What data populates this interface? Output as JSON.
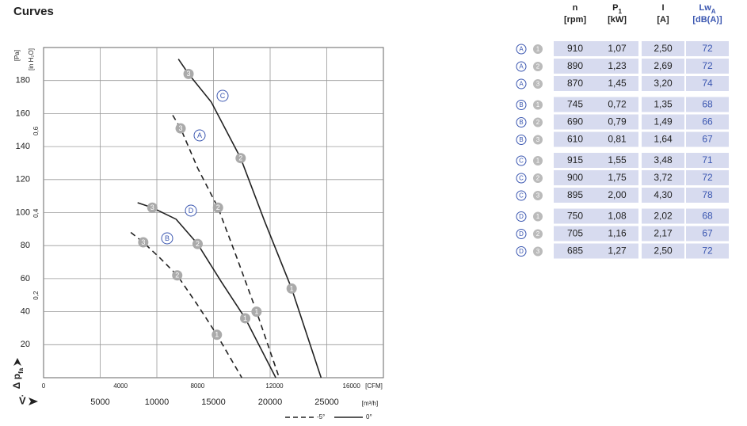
{
  "title": "Curves",
  "chart_data": {
    "type": "line",
    "x_unit": "[m³/h]",
    "x2_unit": "[CFM]",
    "y_unit": "[Pa]",
    "y2_unit": "[in H₂O]",
    "x_symbol": "V̇",
    "y_symbol": "Δ p",
    "y_symbol_sub": "fa",
    "xlim": [
      0,
      30000
    ],
    "xticks": [
      5000,
      10000,
      15000,
      20000,
      25000
    ],
    "x2lim": [
      0,
      17660
    ],
    "x2ticks": [
      0,
      4000,
      8000,
      12000,
      16000
    ],
    "ylim": [
      0,
      200
    ],
    "yticks": [
      20,
      40,
      60,
      80,
      100,
      120,
      140,
      160,
      180
    ],
    "y2lim": [
      0,
      0.803
    ],
    "y2ticks": [
      {
        "value": 0.2,
        "label": "0,2"
      },
      {
        "value": 0.4,
        "label": "0,4"
      },
      {
        "value": 0.6,
        "label": "0,6"
      }
    ],
    "grid": true,
    "series": [
      {
        "name": "A",
        "dash": true,
        "color": "#222222",
        "x": [
          11400,
          12100,
          13600,
          15400,
          17100,
          18800,
          20800
        ],
        "values": [
          159,
          151,
          127,
          103,
          72,
          40,
          0
        ],
        "point_labels": [
          null,
          "3",
          null,
          "2",
          null,
          "1",
          null
        ]
      },
      {
        "name": "B",
        "dash": true,
        "color": "#222222",
        "x": [
          7700,
          8800,
          10200,
          11800,
          13600,
          15300,
          17500
        ],
        "values": [
          88,
          82,
          73,
          62,
          44,
          26,
          0
        ],
        "point_labels": [
          null,
          "3",
          null,
          "2",
          null,
          "1",
          null
        ]
      },
      {
        "name": "C",
        "dash": false,
        "color": "#222222",
        "x": [
          11900,
          12800,
          14800,
          17400,
          19500,
          21900,
          24500
        ],
        "values": [
          193,
          184,
          167,
          133,
          95,
          54,
          0
        ],
        "point_labels": [
          null,
          "3",
          null,
          "2",
          null,
          "1",
          null
        ]
      },
      {
        "name": "D",
        "dash": false,
        "color": "#222222",
        "x": [
          8300,
          9600,
          11700,
          13600,
          15700,
          17800,
          20500
        ],
        "values": [
          106,
          103,
          96,
          81,
          58,
          36,
          0
        ],
        "point_labels": [
          null,
          "3",
          null,
          "2",
          null,
          "1",
          null
        ]
      }
    ],
    "style_legend": [
      {
        "label": "-5°",
        "dash": true
      },
      {
        "label": "0°",
        "dash": false
      }
    ]
  },
  "table": {
    "headers": [
      {
        "name": "n",
        "unit": "[rpm]"
      },
      {
        "name": "P",
        "sub": "1",
        "unit": "[kW]"
      },
      {
        "name": "I",
        "unit": "[A]"
      },
      {
        "name": "Lw",
        "sub": "A",
        "unit": "[dB(A)]",
        "color": "#3a56b0"
      }
    ],
    "rows": [
      {
        "curve": "A",
        "point": "1",
        "cells": [
          "910",
          "1,07",
          "2,50",
          "72"
        ]
      },
      {
        "curve": "A",
        "point": "2",
        "cells": [
          "890",
          "1,23",
          "2,69",
          "72"
        ]
      },
      {
        "curve": "A",
        "point": "3",
        "cells": [
          "870",
          "1,45",
          "3,20",
          "74"
        ]
      },
      {
        "curve": "B",
        "point": "1",
        "cells": [
          "745",
          "0,72",
          "1,35",
          "68"
        ]
      },
      {
        "curve": "B",
        "point": "2",
        "cells": [
          "690",
          "0,79",
          "1,49",
          "66"
        ]
      },
      {
        "curve": "B",
        "point": "3",
        "cells": [
          "610",
          "0,81",
          "1,64",
          "67"
        ]
      },
      {
        "curve": "C",
        "point": "1",
        "cells": [
          "915",
          "1,55",
          "3,48",
          "71"
        ]
      },
      {
        "curve": "C",
        "point": "2",
        "cells": [
          "900",
          "1,75",
          "3,72",
          "72"
        ]
      },
      {
        "curve": "C",
        "point": "3",
        "cells": [
          "895",
          "2,00",
          "4,30",
          "78"
        ]
      },
      {
        "curve": "D",
        "point": "1",
        "cells": [
          "750",
          "1,08",
          "2,02",
          "68"
        ]
      },
      {
        "curve": "D",
        "point": "2",
        "cells": [
          "705",
          "1,16",
          "2,17",
          "67"
        ]
      },
      {
        "curve": "D",
        "point": "3",
        "cells": [
          "685",
          "1,27",
          "2,50",
          "72"
        ]
      }
    ]
  }
}
